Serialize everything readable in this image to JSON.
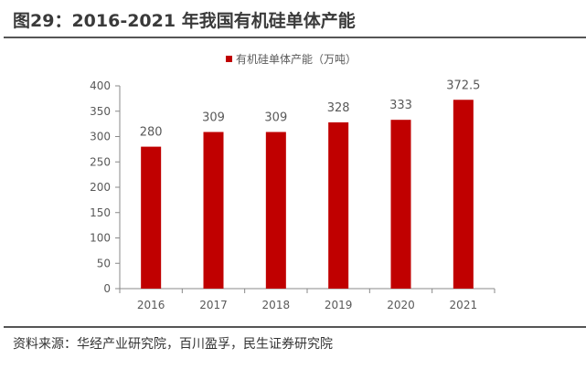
{
  "title": "图29：2016-2021 年我国有机硅单体产能",
  "source": "资料来源：华经产业研究院，百川盈孚，民生证券研究院",
  "chart_data": {
    "type": "bar",
    "categories": [
      "2016",
      "2017",
      "2018",
      "2019",
      "2020",
      "2021"
    ],
    "series": [
      {
        "name": "有机硅单体产能（万吨）",
        "values": [
          280,
          309,
          309,
          328,
          333,
          372.5
        ],
        "color": "#c00000"
      }
    ],
    "data_labels": [
      "280",
      "309",
      "309",
      "328",
      "333",
      "372.5"
    ],
    "ylim": [
      0,
      400
    ],
    "yticks": [
      0,
      50,
      100,
      150,
      200,
      250,
      300,
      350,
      400
    ],
    "legend": "top",
    "grid": false
  }
}
